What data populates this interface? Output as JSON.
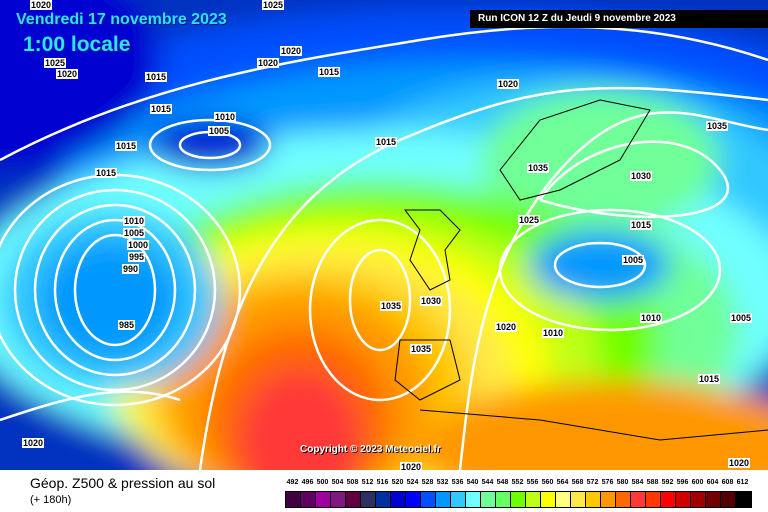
{
  "header": {
    "date": "Vendredi 17 novembre 2023",
    "time": "1:00 locale",
    "run": "Run ICON 12 Z du Jeudi 9 novembre 2023"
  },
  "copyright": "Copyright © 2023 Meteociel.fr",
  "footer": {
    "title": "Géop. Z500 & pression au sol",
    "subtitle": "(+ 180h)"
  },
  "legend": {
    "labels": [
      "492",
      "496",
      "500",
      "504",
      "508",
      "512",
      "516",
      "520",
      "524",
      "528",
      "532",
      "536",
      "540",
      "544",
      "548",
      "552",
      "556",
      "560",
      "564",
      "568",
      "572",
      "576",
      "580",
      "584",
      "588",
      "592",
      "596",
      "600",
      "604",
      "608",
      "612"
    ],
    "colors": [
      "#400040",
      "#600060",
      "#a000a0",
      "#801880",
      "#600040",
      "#303060",
      "#0030a0",
      "#0000d0",
      "#0000ff",
      "#0050ff",
      "#0098ff",
      "#30c8ff",
      "#70ffff",
      "#70ff98",
      "#68ff60",
      "#70ff00",
      "#c0ff18",
      "#ffff00",
      "#ffff80",
      "#ffe848",
      "#ffc800",
      "#ff9800",
      "#ff6800",
      "#ff3838",
      "#ff3800",
      "#ff0000",
      "#d00000",
      "#a00000",
      "#700000",
      "#500000",
      "#000000"
    ]
  },
  "isobars": [
    "1020",
    "1025",
    "1020",
    "1020",
    "1020",
    "1025",
    "1015",
    "1015",
    "1010",
    "1005",
    "1015",
    "1015",
    "1015",
    "1010",
    "1005",
    "1000",
    "995",
    "990",
    "985",
    "1015",
    "1020",
    "1035",
    "1035",
    "1030",
    "1035",
    "1025",
    "1015",
    "1005",
    "1035",
    "1030",
    "1020",
    "1010",
    "1010",
    "1005",
    "1015",
    "1020",
    "1020",
    "1020"
  ]
}
